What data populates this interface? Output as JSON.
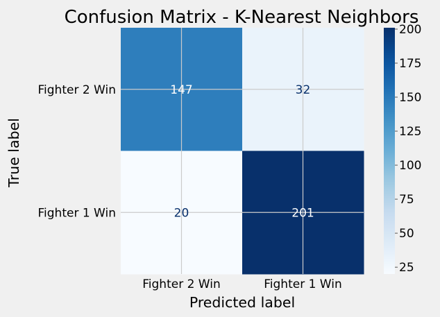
{
  "chart_data": {
    "type": "heatmap",
    "title": "Confusion Matrix - K-Nearest Neighbors",
    "xlabel": "Predicted label",
    "ylabel": "True label",
    "x_categories": [
      "Fighter 2 Win",
      "Fighter 1 Win"
    ],
    "y_categories": [
      "Fighter 2 Win",
      "Fighter 1 Win"
    ],
    "matrix": [
      [
        147,
        32
      ],
      [
        20,
        201
      ]
    ],
    "colormap": "Blues",
    "colorbar": {
      "range": [
        20,
        201
      ],
      "ticks": [
        25,
        50,
        75,
        100,
        125,
        150,
        175,
        200
      ]
    },
    "grid": true
  },
  "colors": {
    "background": "#f0f0f0",
    "grid": "#cbcbcb",
    "text_on_light": "#08306b",
    "text_on_dark": "#ffffff"
  }
}
